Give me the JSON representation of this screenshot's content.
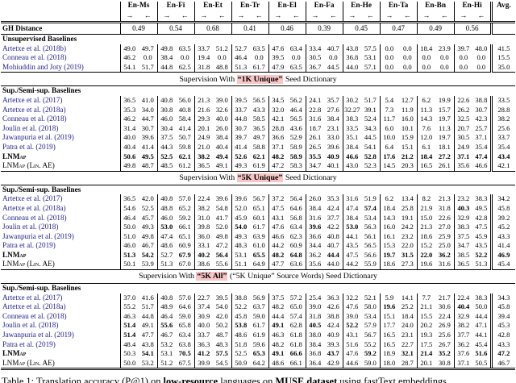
{
  "caption": {
    "segments": [
      {
        "t": "Table 1: Translation accuracy (P@1) on ",
        "b": false
      },
      {
        "t": "low-resource",
        "b": true
      },
      {
        "t": " languages on ",
        "b": false
      },
      {
        "t": "MUSE dataset",
        "b": true
      },
      {
        "t": " using fastText embeddings",
        "b": false
      }
    ]
  },
  "table": {
    "highlight_color": "#f8c6c6",
    "citation_color": "#23238f",
    "languages": [
      "En-Ms",
      "En-Fi",
      "En-Et",
      "En-Tr",
      "En-El",
      "En-Fa",
      "En-He",
      "En-Ta",
      "En-Bn",
      "En-Hi"
    ],
    "avg_label": "Avg.",
    "arrow_right": "→",
    "arrow_left": "←",
    "gh_row": {
      "label": "GH Distance",
      "values": [
        "0.49",
        "0.54",
        "0.68",
        "0.41",
        "0.46",
        "0.39",
        "0.45",
        "0.47",
        "0.49",
        "0.56"
      ]
    },
    "sections": [
      {
        "header": null,
        "group_label": "Unsupervised Baselines",
        "rows": [
          {
            "label": "Artetxe et al. (2018b)",
            "style": "cite",
            "values": [
              "49.0",
              "49.7",
              "49.8",
              "63.5",
              "33.7",
              "51.2",
              "52.7",
              "63.5",
              "47.6",
              "63.4",
              "33.4",
              "40.7",
              "43.8",
              "57.5",
              "0.0",
              "0.0",
              "18.4",
              "23.9",
              "39.7",
              "48.0",
              "41.5"
            ],
            "bold": []
          },
          {
            "label": "Conneau et al. (2018)",
            "style": "cite",
            "values": [
              "46.2",
              "0.0",
              "38.4",
              "0.0",
              "19.4",
              "0.0",
              "46.4",
              "0.0",
              "39.5",
              "0.0",
              "30.5",
              "0.0",
              "36.8",
              "53.1",
              "0.0",
              "0.0",
              "0.0",
              "0.0",
              "0.0",
              "0.0",
              "15.5"
            ],
            "bold": []
          },
          {
            "label": "Mohiuddin and Joty (2019)",
            "style": "cite",
            "values": [
              "54.1",
              "51.7",
              "44.8",
              "62.5",
              "31.8",
              "48.8",
              "51.3",
              "61.7",
              "47.9",
              "63.5",
              "36.7",
              "44.5",
              "44.0",
              "57.1",
              "0.0",
              "0.0",
              "0.0",
              "0.0",
              "0.0",
              "0.0",
              "35.0"
            ],
            "bold": []
          }
        ]
      },
      {
        "header": {
          "pre": "Supervision With ",
          "highlight": "“1K Unique”",
          "post": " Seed Dictionary"
        },
        "group_label": "Sup./Semi-sup. Baselines",
        "rows": [
          {
            "label": "Artetxe et al. (2017)",
            "style": "cite",
            "values": [
              "36.5",
              "41.0",
              "40.8",
              "56.0",
              "21.3",
              "39.0",
              "39.5",
              "56.5",
              "34.5",
              "56.2",
              "24.1",
              "35.7",
              "30.2",
              "51.7",
              "5.4",
              "12.7",
              "6.2",
              "19.9",
              "22.6",
              "38.8",
              "33.5"
            ],
            "bold": []
          },
          {
            "label": "Artetxe et al. (2018a)",
            "style": "cite",
            "values": [
              "35.3",
              "34.0",
              "30.8",
              "40.8",
              "21.6",
              "32.6",
              "33.7",
              "43.3",
              "32.0",
              "46.4",
              "22.8",
              "27.6",
              "32.27",
              "39.1",
              "7.3",
              "11.9",
              "11.3",
              "15.7",
              "26.2",
              "30.7",
              "28.8"
            ],
            "bold": []
          },
          {
            "label": "Conneau et al. (2018)",
            "style": "cite",
            "values": [
              "46.2",
              "44.7",
              "46.0",
              "58.4",
              "29.3",
              "40.0",
              "44.8",
              "58.5",
              "42.1",
              "56.5",
              "31.6",
              "38.4",
              "38.3",
              "52.4",
              "11.7",
              "16.0",
              "14.3",
              "19.7",
              "32.5",
              "42.3",
              "38.2"
            ],
            "bold": []
          },
          {
            "label": "Joulin et al. (2018)",
            "style": "cite",
            "values": [
              "31.4",
              "30.7",
              "30.4",
              "41.4",
              "20.1",
              "26.0",
              "30.7",
              "36.5",
              "28.8",
              "43.6",
              "18.7",
              "23.1",
              "33.5",
              "34.3",
              "6.0",
              "10.1",
              "7.6",
              "11.3",
              "20.7",
              "25.7",
              "25.6"
            ],
            "bold": []
          },
          {
            "label": "Jawanpuria et al. (2019)",
            "style": "cite",
            "values": [
              "40.0",
              "39.6",
              "37.5",
              "50.7",
              "24.9",
              "38.4",
              "39.7",
              "49.7",
              "36.6",
              "52.9",
              "26.1",
              "33.0",
              "35.1",
              "44.5",
              "10.0",
              "15.9",
              "12.0",
              "19.7",
              "30.5",
              "37.1",
              "33.7"
            ],
            "bold": []
          },
          {
            "label": "Patra et al. (2019)",
            "style": "cite",
            "values": [
              "40.4",
              "41.4",
              "44.3",
              "59.8",
              "21.0",
              "40.4",
              "41.4",
              "58.8",
              "37.1",
              "58.9",
              "26.5",
              "39.6",
              "38.4",
              "54.1",
              "6.4",
              "15.1",
              "6.1",
              "18.1",
              "24.9",
              "35.4",
              "35.4"
            ],
            "bold": []
          },
          {
            "label": "LNMap",
            "style": "lnmap",
            "all_bold": true,
            "values": [
              "50.6",
              "49.5",
              "52.5",
              "62.1",
              "38.2",
              "49.4",
              "52.6",
              "62.1",
              "48.2",
              "58.9",
              "35.5",
              "40.9",
              "46.6",
              "52.8",
              "17.6",
              "21.2",
              "18.4",
              "27.2",
              "37.1",
              "47.4",
              "43.4"
            ],
            "bold": []
          },
          {
            "label": "LNMap (Lin. AE)",
            "style": "lnmapae",
            "values": [
              "49.8",
              "48.7",
              "48.5",
              "61.2",
              "36.5",
              "49.1",
              "49.3",
              "61.9",
              "47.2",
              "58.3",
              "34.7",
              "40.1",
              "43.0",
              "52.3",
              "14.5",
              "20.3",
              "16.5",
              "26.1",
              "35.6",
              "46.6",
              "42.1"
            ],
            "bold": []
          }
        ]
      },
      {
        "header": {
          "pre": "Supervision With ",
          "highlight": "“5K Unique”",
          "post": " Seed Dictionary"
        },
        "group_label": "Sup./Semi-sup. Baselines",
        "rows": [
          {
            "label": "Artetxe et al. (2017)",
            "style": "cite",
            "values": [
              "36.5",
              "42.0",
              "40.8",
              "57.0",
              "22.4",
              "39.6",
              "39.6",
              "56.7",
              "37.2",
              "56.4",
              "26.0",
              "35.3",
              "31.6",
              "51.9",
              "6.2",
              "13.4",
              "8.2",
              "21.3",
              "23.2",
              "38.3",
              "34.2"
            ],
            "bold": []
          },
          {
            "label": "Artetxe et al. (2018a)",
            "style": "cite",
            "values": [
              "54.6",
              "52.5",
              "48.8",
              "65.2",
              "38.2",
              "54.8",
              "52.0",
              "65.1",
              "47.5",
              "64.6",
              "38.4",
              "42.4",
              "47.4",
              "57.4",
              "18.4",
              "25.8",
              "21.9",
              "31.8",
              "40.3",
              "49.5",
              "45.8"
            ],
            "bold": [
              13,
              18
            ]
          },
          {
            "label": "Conneau et al. (2018)",
            "style": "cite",
            "values": [
              "46.4",
              "45.7",
              "46.0",
              "59.2",
              "31.0",
              "41.7",
              "45.9",
              "60.1",
              "43.1",
              "56.8",
              "31.6",
              "37.7",
              "38.4",
              "53.4",
              "14.3",
              "19.1",
              "15.0",
              "22.6",
              "32.9",
              "42.8",
              "39.2"
            ],
            "bold": []
          },
          {
            "label": "Joulin et al. (2018)",
            "style": "cite",
            "values": [
              "50.0",
              "49.3",
              "53.0",
              "66.1",
              "39.8",
              "52.0",
              "54.0",
              "61.7",
              "47.6",
              "63.4",
              "39.6",
              "42.2",
              "53.0",
              "56.3",
              "16.0",
              "24.2",
              "21.3",
              "27.0",
              "38.3",
              "47.5",
              "45.2"
            ],
            "bold": [
              2,
              6,
              10,
              12
            ]
          },
          {
            "label": "Jawanpuria et al. (2019)",
            "style": "cite",
            "values": [
              "51.0",
              "49.8",
              "47.4",
              "65.1",
              "36.0",
              "49.8",
              "49.3",
              "63.9",
              "46.6",
              "62.3",
              "36.6",
              "40.8",
              "44.1",
              "56.1",
              "16.1",
              "23.2",
              "18.6",
              "25.9",
              "37.5",
              "45.9",
              "43.3"
            ],
            "bold": []
          },
          {
            "label": "Patra et al. (2019)",
            "style": "cite",
            "values": [
              "46.0",
              "46.7",
              "48.6",
              "60.9",
              "33.1",
              "47.2",
              "48.3",
              "61.0",
              "44.2",
              "60.9",
              "34.4",
              "40.7",
              "43.5",
              "56.5",
              "15.3",
              "22.0",
              "15.2",
              "25.0",
              "34.7",
              "43.5",
              "41.4"
            ],
            "bold": []
          },
          {
            "label": "LNMap",
            "style": "lnmap",
            "values": [
              "51.3",
              "54.2",
              "52.7",
              "67.9",
              "40.2",
              "56.4",
              "53.1",
              "65.5",
              "48.2",
              "64.8",
              "36.2",
              "44.4",
              "47.5",
              "56.6",
              "19.7",
              "31.5",
              "22.0",
              "36.2",
              "38.5",
              "52.2",
              "46.9"
            ],
            "bold": [
              0,
              1,
              3,
              4,
              5,
              7,
              8,
              9,
              11,
              14,
              15,
              16,
              17,
              19,
              20
            ]
          },
          {
            "label": "LNMap (Lin. AE)",
            "style": "lnmapae",
            "values": [
              "50.1",
              "53.9",
              "51.3",
              "67.0",
              "38.6",
              "55.6",
              "51.1",
              "64.9",
              "47.7",
              "63.6",
              "35.6",
              "44.0",
              "44.2",
              "55.9",
              "18.6",
              "27.3",
              "19.6",
              "31.6",
              "36.5",
              "51.3",
              "45.4"
            ],
            "bold": []
          }
        ]
      },
      {
        "header": {
          "pre": "Supervision With ",
          "highlight": "“5K All”",
          "post": " (“5K Unique” Source Words) Seed Dictionary"
        },
        "group_label": "Sup./Semi-sup. Baselines",
        "rows": [
          {
            "label": "Artetxe et al. (2017)",
            "style": "cite",
            "values": [
              "37.0",
              "41.6",
              "40.8",
              "57.0",
              "22.7",
              "39.5",
              "38.8",
              "56.9",
              "37.5",
              "57.2",
              "25.4",
              "36.3",
              "32.2",
              "52.1",
              "5.9",
              "14.1",
              "7.7",
              "21.7",
              "22.4",
              "38.3",
              "34.3"
            ],
            "bold": []
          },
          {
            "label": "Artetxe et al. (2018a)",
            "style": "cite",
            "values": [
              "55.2",
              "51.7",
              "48.9",
              "64.6",
              "37.4",
              "54.0",
              "52.2",
              "63.7",
              "48.2",
              "65.0",
              "39.0",
              "42.6",
              "47.6",
              "58.0",
              "19.6",
              "25.2",
              "21.1",
              "30.6",
              "40.4",
              "50.0",
              "45.8"
            ],
            "bold": [
              14,
              18
            ]
          },
          {
            "label": "Conneau et al. (2018)",
            "style": "cite",
            "values": [
              "46.3",
              "44.8",
              "46.4",
              "59.0",
              "30.9",
              "42.0",
              "45.8",
              "59.0",
              "44.4",
              "57.4",
              "31.8",
              "38.8",
              "39.0",
              "53.4",
              "15.1",
              "18.4",
              "15.5",
              "22.4",
              "32.9",
              "44.4",
              "39.4"
            ],
            "bold": []
          },
          {
            "label": "Joulin et al. (2018)",
            "style": "cite",
            "values": [
              "51.4",
              "49.1",
              "55.6",
              "65.8",
              "40.0",
              "50.2",
              "53.8",
              "61.7",
              "49.1",
              "62.8",
              "40.5",
              "42.4",
              "52.2",
              "57.9",
              "17.7",
              "24.0",
              "20.2",
              "26.9",
              "38.2",
              "47.1",
              "45.3"
            ],
            "bold": [
              0,
              2,
              6,
              8,
              10,
              12
            ]
          },
          {
            "label": "Jawanpuria et al. (2019)",
            "style": "cite",
            "values": [
              "51.4",
              "47.7",
              "46.7",
              "63.4",
              "33.7",
              "48.7",
              "48.6",
              "61.9",
              "46.3",
              "61.8",
              "38.0",
              "40.9",
              "43.1",
              "56.7",
              "16.5",
              "23.1",
              "19.3",
              "25.6",
              "37.7",
              "44.1",
              "42.8"
            ],
            "bold": [
              0
            ]
          },
          {
            "label": "Patra et al. (2019)",
            "style": "cite",
            "values": [
              "48.4",
              "43.8",
              "53.2",
              "63.8",
              "36.3",
              "48.3",
              "51.8",
              "59.6",
              "48.2",
              "61.8",
              "38.4",
              "39.3",
              "51.6",
              "55.2",
              "16.5",
              "22.7",
              "17.5",
              "26.7",
              "36.2",
              "45.4",
              "43.3"
            ],
            "bold": []
          },
          {
            "label": "LNMap",
            "style": "lnmap",
            "values": [
              "50.3",
              "54.1",
              "53.1",
              "70.5",
              "41.2",
              "57.5",
              "52.5",
              "65.3",
              "49.1",
              "66.6",
              "36.8",
              "43.7",
              "47.6",
              "59.2",
              "18.9",
              "32.1",
              "21.4",
              "35.2",
              "37.6",
              "51.6",
              "47.2"
            ],
            "bold": [
              1,
              3,
              4,
              5,
              7,
              8,
              9,
              11,
              13,
              15,
              16,
              17,
              19,
              20
            ]
          },
          {
            "label": "LNMap (Lin. AE)",
            "style": "lnmapae",
            "values": [
              "50.0",
              "53.2",
              "51.2",
              "67.5",
              "39.9",
              "54.5",
              "50.9",
              "64.2",
              "48.6",
              "66.1",
              "36.4",
              "42.9",
              "44.6",
              "59.0",
              "18.0",
              "28.7",
              "20.1",
              "30.8",
              "37.1",
              "50.5",
              "46.7"
            ],
            "bold": []
          }
        ]
      }
    ]
  }
}
